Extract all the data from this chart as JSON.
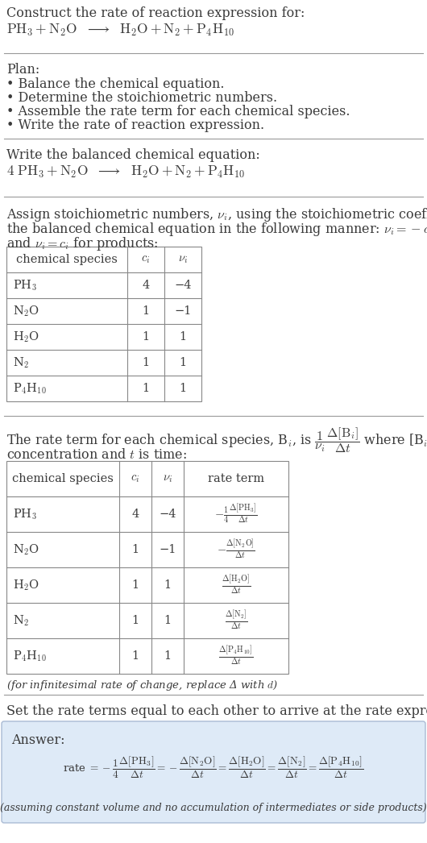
{
  "bg_color": "#ffffff",
  "text_color": "#3a3a3a",
  "title_text": "Construct the rate of reaction expression for:",
  "plan_header": "Plan:",
  "plan_items": [
    "• Balance the chemical equation.",
    "• Determine the stoichiometric numbers.",
    "• Assemble the rate term for each chemical species.",
    "• Write the rate of reaction expression."
  ],
  "balanced_header": "Write the balanced chemical equation:",
  "table1_headers": [
    "chemical species",
    "$c_i$",
    "$\\nu_i$"
  ],
  "table1_rows": [
    [
      "PH$_3$",
      "4",
      "−4"
    ],
    [
      "N$_2$O",
      "1",
      "−1"
    ],
    [
      "H$_2$O",
      "1",
      "1"
    ],
    [
      "N$_2$",
      "1",
      "1"
    ],
    [
      "P$_4$H$_{10}$",
      "1",
      "1"
    ]
  ],
  "table2_headers": [
    "chemical species",
    "$c_i$",
    "$\\nu_i$",
    "rate term"
  ],
  "table2_rows": [
    [
      "PH$_3$",
      "4",
      "−4",
      "$-\\frac{1}{4}\\frac{\\Delta[\\mathrm{PH_3}]}{\\Delta t}$"
    ],
    [
      "N$_2$O",
      "1",
      "−1",
      "$-\\frac{\\Delta[\\mathrm{N_2O}]}{\\Delta t}$"
    ],
    [
      "H$_2$O",
      "1",
      "1",
      "$\\frac{\\Delta[\\mathrm{H_2O}]}{\\Delta t}$"
    ],
    [
      "N$_2$",
      "1",
      "1",
      "$\\frac{\\Delta[\\mathrm{N_2}]}{\\Delta t}$"
    ],
    [
      "P$_4$H$_{10}$",
      "1",
      "1",
      "$\\frac{\\Delta[\\mathrm{P_4H_{10}}]}{\\Delta t}$"
    ]
  ],
  "infinitesimal_note": "(for infinitesimal rate of change, replace Δ with $d$)",
  "set_rate_text": "Set the rate terms equal to each other to arrive at the rate expression:",
  "answer_label": "Answer:",
  "answer_box_color": "#deeaf7",
  "answer_border_color": "#aabbd4",
  "answer_note": "(assuming constant volume and no accumulation of intermediates or side products)"
}
